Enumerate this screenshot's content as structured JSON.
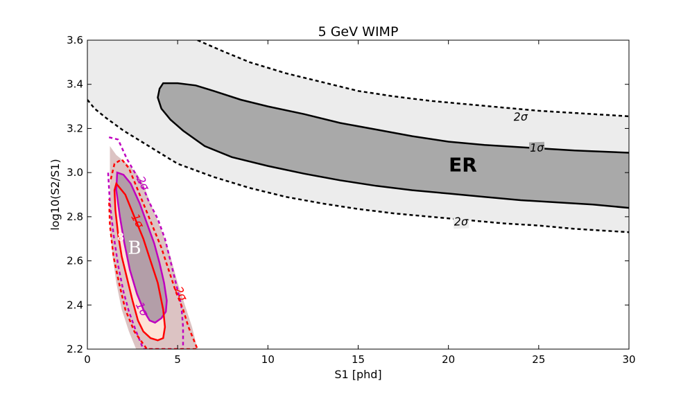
{
  "chart_data": {
    "type": "contour",
    "title": "5 GeV WIMP",
    "xlabel": "S1 [phd]",
    "ylabel": "log10(S2/S1)",
    "xlim": [
      0,
      30
    ],
    "ylim": [
      2.2,
      3.6
    ],
    "xticks": [
      0,
      5,
      10,
      15,
      20,
      25,
      30
    ],
    "xtick_labels": [
      "0",
      "5",
      "10",
      "15",
      "20",
      "25",
      "30"
    ],
    "yticks": [
      2.2,
      2.4,
      2.6,
      2.8,
      3.0,
      3.2,
      3.4,
      3.6
    ],
    "ytick_labels": [
      "2.2",
      "2.4",
      "2.6",
      "2.8",
      "3.0",
      "3.2",
      "3.4",
      "3.6"
    ],
    "grid": false,
    "colors": {
      "er_2sigma_fill": "#ececec",
      "er_1sigma_fill": "#a9a9a9",
      "b8_region_fill": "#dcc3c3",
      "wimp_1sigma_fill": "#fde2d6",
      "b8_1sigma_fill": "#b39ea8",
      "wimp_line": "#ff0000",
      "b8_line": "#bf00bf",
      "er_line": "#000000"
    },
    "region_labels": {
      "er": "ER",
      "b8_sup": "8",
      "b8_main": "B"
    },
    "contour_labels": {
      "two_sigma": "2σ",
      "one_sigma": "1σ"
    },
    "contours": [
      {
        "id": "er_2sigma_upper",
        "level": "2σ",
        "points": [
          [
            6.1,
            3.6
          ],
          [
            7.5,
            3.55
          ],
          [
            9,
            3.5
          ],
          [
            11,
            3.45
          ],
          [
            13,
            3.41
          ],
          [
            15,
            3.37
          ],
          [
            17,
            3.345
          ],
          [
            19,
            3.325
          ],
          [
            21,
            3.31
          ],
          [
            23,
            3.295
          ],
          [
            25,
            3.28
          ],
          [
            27,
            3.27
          ],
          [
            30,
            3.255
          ]
        ]
      },
      {
        "id": "er_2sigma_lower",
        "level": "2σ",
        "points": [
          [
            0,
            3.33
          ],
          [
            0.4,
            3.29
          ],
          [
            1,
            3.25
          ],
          [
            2,
            3.19
          ],
          [
            3,
            3.14
          ],
          [
            4,
            3.09
          ],
          [
            5,
            3.04
          ],
          [
            7,
            2.98
          ],
          [
            9,
            2.93
          ],
          [
            11,
            2.89
          ],
          [
            13,
            2.86
          ],
          [
            15,
            2.835
          ],
          [
            17,
            2.815
          ],
          [
            19,
            2.8
          ],
          [
            21,
            2.785
          ],
          [
            23,
            2.77
          ],
          [
            25,
            2.76
          ],
          [
            27,
            2.745
          ],
          [
            30,
            2.73
          ]
        ]
      },
      {
        "id": "er_1sigma",
        "level": "1σ",
        "points": [
          [
            30,
            3.09
          ],
          [
            27,
            3.1
          ],
          [
            24,
            3.115
          ],
          [
            22,
            3.125
          ],
          [
            20,
            3.14
          ],
          [
            18,
            3.165
          ],
          [
            16,
            3.195
          ],
          [
            14,
            3.225
          ],
          [
            12,
            3.265
          ],
          [
            10,
            3.3
          ],
          [
            8.5,
            3.33
          ],
          [
            7,
            3.37
          ],
          [
            6,
            3.395
          ],
          [
            5,
            3.405
          ],
          [
            4.2,
            3.405
          ],
          [
            4,
            3.38
          ],
          [
            3.9,
            3.34
          ],
          [
            4.1,
            3.29
          ],
          [
            4.6,
            3.24
          ],
          [
            5.3,
            3.19
          ],
          [
            6.5,
            3.12
          ],
          [
            8,
            3.07
          ],
          [
            10,
            3.03
          ],
          [
            12,
            2.995
          ],
          [
            14,
            2.965
          ],
          [
            16,
            2.94
          ],
          [
            18,
            2.92
          ],
          [
            20,
            2.905
          ],
          [
            22,
            2.89
          ],
          [
            24,
            2.875
          ],
          [
            26,
            2.865
          ],
          [
            28,
            2.855
          ],
          [
            30,
            2.84
          ]
        ]
      },
      {
        "id": "b8_region",
        "level": "region",
        "points": [
          [
            1.25,
            3.12
          ],
          [
            1.6,
            3.08
          ],
          [
            2.2,
            3.04
          ],
          [
            2.7,
            3.0
          ],
          [
            3.1,
            2.95
          ],
          [
            3.4,
            2.88
          ],
          [
            3.7,
            2.82
          ],
          [
            4.2,
            2.72
          ],
          [
            4.6,
            2.62
          ],
          [
            5.0,
            2.5
          ],
          [
            5.4,
            2.4
          ],
          [
            5.8,
            2.3
          ],
          [
            6.1,
            2.2
          ],
          [
            2.7,
            2.2
          ],
          [
            2.3,
            2.28
          ],
          [
            1.9,
            2.38
          ],
          [
            1.6,
            2.5
          ],
          [
            1.4,
            2.62
          ],
          [
            1.25,
            2.76
          ],
          [
            1.25,
            2.95
          ]
        ]
      },
      {
        "id": "wimp_1sigma",
        "level": "1σ",
        "points": [
          [
            1.6,
            2.95
          ],
          [
            2.1,
            2.9
          ],
          [
            2.6,
            2.8
          ],
          [
            3.1,
            2.7
          ],
          [
            3.5,
            2.6
          ],
          [
            3.9,
            2.5
          ],
          [
            4.2,
            2.38
          ],
          [
            4.3,
            2.3
          ],
          [
            4.2,
            2.25
          ],
          [
            3.9,
            2.24
          ],
          [
            3.5,
            2.25
          ],
          [
            3.1,
            2.28
          ],
          [
            2.8,
            2.33
          ],
          [
            2.5,
            2.42
          ],
          [
            2.2,
            2.52
          ],
          [
            1.9,
            2.62
          ],
          [
            1.7,
            2.72
          ],
          [
            1.55,
            2.83
          ],
          [
            1.5,
            2.92
          ]
        ]
      },
      {
        "id": "b8_1sigma",
        "level": "1σ",
        "points": [
          [
            1.65,
            3.0
          ],
          [
            2.0,
            2.99
          ],
          [
            2.4,
            2.95
          ],
          [
            2.9,
            2.86
          ],
          [
            3.3,
            2.77
          ],
          [
            3.7,
            2.68
          ],
          [
            4.0,
            2.59
          ],
          [
            4.25,
            2.5
          ],
          [
            4.4,
            2.42
          ],
          [
            4.35,
            2.37
          ],
          [
            4.1,
            2.34
          ],
          [
            3.75,
            2.32
          ],
          [
            3.45,
            2.33
          ],
          [
            3.15,
            2.37
          ],
          [
            2.75,
            2.45
          ],
          [
            2.35,
            2.56
          ],
          [
            2.05,
            2.68
          ],
          [
            1.8,
            2.8
          ],
          [
            1.6,
            2.92
          ]
        ]
      },
      {
        "id": "b8_2sigma",
        "level": "2σ",
        "points": [
          [
            1.2,
            3.16
          ],
          [
            1.7,
            3.15
          ],
          [
            2.2,
            3.06
          ],
          [
            2.7,
            2.99
          ],
          [
            3.1,
            2.93
          ],
          [
            3.4,
            2.87
          ],
          [
            3.9,
            2.79
          ],
          [
            4.3,
            2.7
          ],
          [
            4.6,
            2.6
          ],
          [
            4.9,
            2.5
          ],
          [
            5.2,
            2.4
          ],
          [
            5.3,
            2.3
          ],
          [
            5.3,
            2.2
          ],
          [
            3.1,
            2.2
          ],
          [
            2.7,
            2.28
          ],
          [
            2.3,
            2.37
          ],
          [
            2.0,
            2.46
          ],
          [
            1.7,
            2.58
          ],
          [
            1.45,
            2.72
          ],
          [
            1.25,
            2.86
          ],
          [
            1.15,
            3.0
          ]
        ]
      },
      {
        "id": "wimp_2sigma",
        "level": "2σ",
        "points": [
          [
            1.3,
            2.97
          ],
          [
            1.5,
            3.04
          ],
          [
            1.9,
            3.06
          ],
          [
            2.3,
            3.02
          ],
          [
            2.6,
            2.96
          ],
          [
            2.9,
            2.9
          ],
          [
            3.3,
            2.82
          ],
          [
            3.7,
            2.74
          ],
          [
            4.1,
            2.66
          ],
          [
            4.5,
            2.56
          ],
          [
            4.9,
            2.46
          ],
          [
            5.3,
            2.38
          ],
          [
            5.6,
            2.3
          ],
          [
            6.0,
            2.22
          ],
          [
            6.1,
            2.2
          ],
          [
            3.3,
            2.2
          ],
          [
            2.6,
            2.28
          ],
          [
            2.1,
            2.38
          ],
          [
            1.75,
            2.5
          ],
          [
            1.45,
            2.62
          ],
          [
            1.25,
            2.76
          ],
          [
            1.2,
            2.88
          ]
        ]
      }
    ],
    "annotations": [
      {
        "text": "ER",
        "x": 20.8,
        "y": 3.03
      },
      {
        "text": "2σ",
        "x": 24.0,
        "y": 3.25,
        "rotation": -2
      },
      {
        "text": "1σ",
        "x": 24.9,
        "y": 3.11,
        "rotation": -2
      },
      {
        "text": "2σ",
        "x": 20.7,
        "y": 2.775,
        "rotation": -2
      },
      {
        "text": "2σ",
        "x": 3.05,
        "y": 2.95,
        "rotation": 62
      },
      {
        "text": "1σ",
        "x": 2.75,
        "y": 2.78,
        "rotation": 62
      },
      {
        "text": "2σ",
        "x": 5.15,
        "y": 2.45,
        "rotation": 62
      },
      {
        "text": "1σ",
        "x": 3.0,
        "y": 2.38,
        "rotation": 62
      },
      {
        "text": "8B",
        "x": 2.5,
        "y": 2.66
      }
    ]
  }
}
